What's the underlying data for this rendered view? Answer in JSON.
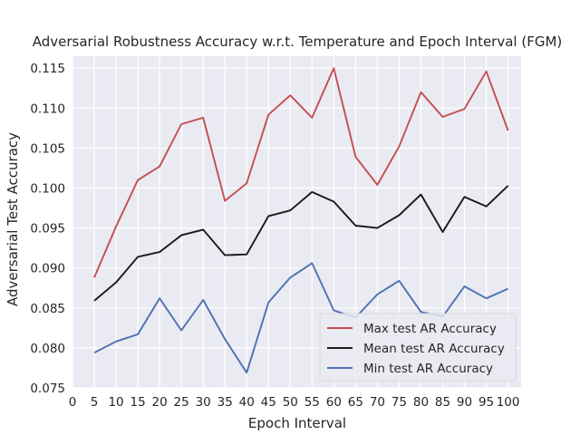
{
  "chart_data": {
    "type": "line",
    "title": "Adversarial Robustness Accuracy w.r.t. Temperature and Epoch Interval (FGM)",
    "xlabel": "Epoch Interval",
    "ylabel": "Adversarial Test Accuracy",
    "x": [
      5,
      10,
      15,
      20,
      25,
      30,
      35,
      40,
      45,
      50,
      55,
      60,
      65,
      70,
      75,
      80,
      85,
      90,
      95,
      100
    ],
    "xticks": [
      0,
      5,
      10,
      15,
      20,
      25,
      30,
      35,
      40,
      45,
      50,
      55,
      60,
      65,
      70,
      75,
      80,
      85,
      90,
      95,
      100
    ],
    "xtick_labels": [
      "0",
      "5",
      "10",
      "15",
      "20",
      "25",
      "30",
      "35",
      "40",
      "45",
      "50",
      "55",
      "60",
      "65",
      "70",
      "75",
      "80",
      "85",
      "90",
      "95",
      "100"
    ],
    "yticks": [
      0.075,
      0.08,
      0.085,
      0.09,
      0.095,
      0.1,
      0.105,
      0.11,
      0.115
    ],
    "ytick_labels": [
      "0.075",
      "0.080",
      "0.085",
      "0.090",
      "0.095",
      "0.100",
      "0.105",
      "0.110",
      "0.115"
    ],
    "xlim": [
      0,
      103
    ],
    "ylim": [
      0.075,
      0.1165
    ],
    "grid": true,
    "legend_position": "lower-right",
    "series": [
      {
        "name": "Max test AR Accuracy",
        "color": "#c44e52",
        "values": [
          0.0888,
          0.0952,
          0.101,
          0.1027,
          0.108,
          0.1088,
          0.0984,
          0.1006,
          0.1092,
          0.1116,
          0.1088,
          0.115,
          0.1039,
          0.1004,
          0.1052,
          0.112,
          0.1089,
          0.1099,
          0.1146,
          0.1072
        ]
      },
      {
        "name": "Mean test AR Accuracy",
        "color": "#1a1a1a",
        "values": [
          0.0859,
          0.0882,
          0.0914,
          0.092,
          0.0941,
          0.0948,
          0.0916,
          0.0917,
          0.0965,
          0.0972,
          0.0995,
          0.0983,
          0.0953,
          0.095,
          0.0966,
          0.0992,
          0.0945,
          0.0989,
          0.0977,
          0.1003
        ]
      },
      {
        "name": "Min test AR Accuracy",
        "color": "#4c72b0",
        "values": [
          0.0794,
          0.0808,
          0.0817,
          0.0862,
          0.0822,
          0.086,
          0.0811,
          0.0769,
          0.0857,
          0.0888,
          0.0906,
          0.0847,
          0.0838,
          0.0867,
          0.0884,
          0.0845,
          0.0839,
          0.0877,
          0.0862,
          0.0874
        ]
      }
    ]
  }
}
